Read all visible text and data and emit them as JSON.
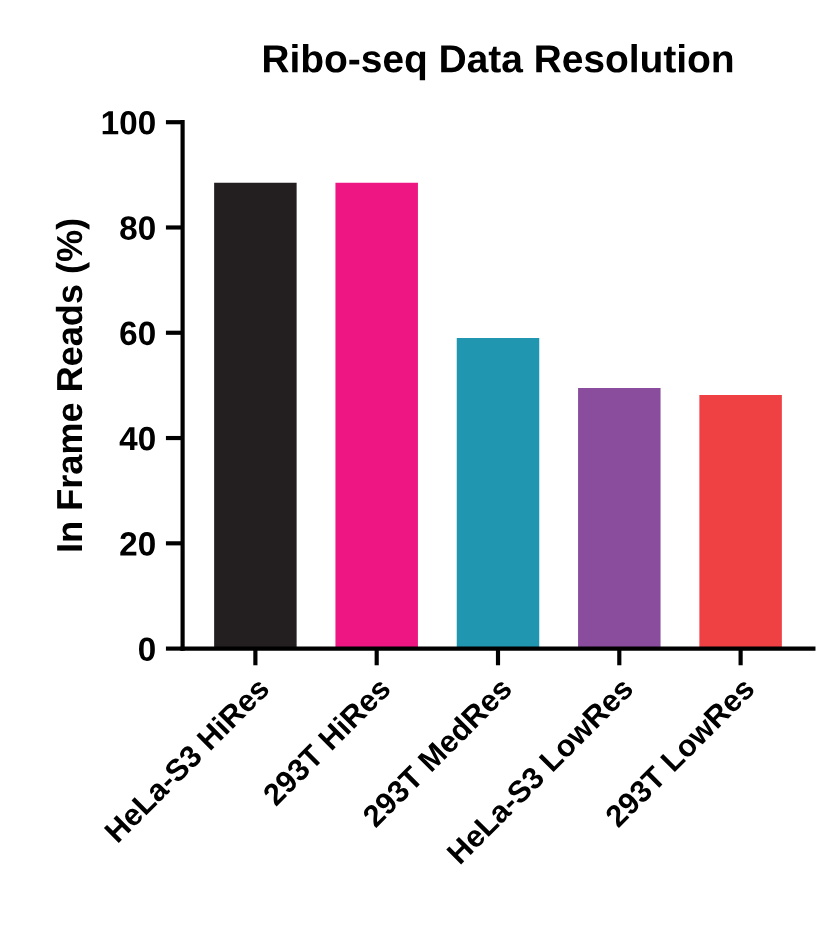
{
  "chart_data": {
    "type": "bar",
    "title": "Ribo-seq Data Resolution",
    "ylabel": "In Frame Reads (%)",
    "categories": [
      "HeLa-S3 HiRes",
      "293T HiRes",
      "293T MedRes",
      "HeLa-S3 LowRes",
      "293T LowRes"
    ],
    "values": [
      88.5,
      88.5,
      59,
      49.5,
      48.2
    ],
    "colors": [
      "#231f20",
      "#ed1683",
      "#2196b0",
      "#8a4d9e",
      "#ef4044"
    ],
    "ylim": [
      0,
      100
    ],
    "yticks": [
      0,
      20,
      40,
      60,
      80,
      100
    ],
    "grid": false
  }
}
